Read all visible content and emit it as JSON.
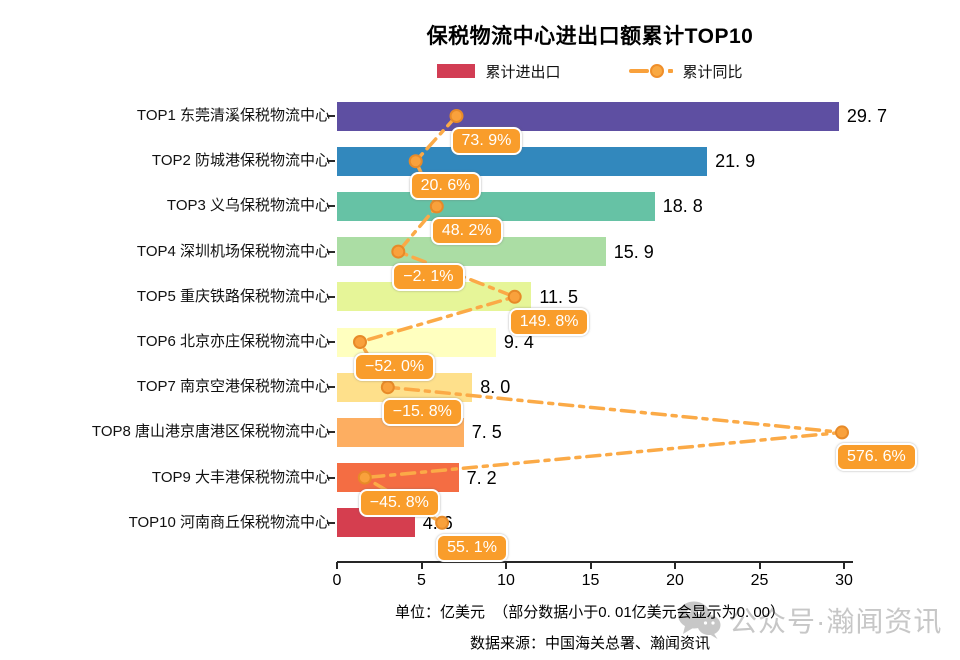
{
  "title": "保税物流中心进出口额累计TOP10",
  "legend": {
    "bar_label": "累计进出口",
    "bar_color": "#d23d54",
    "line_label": "累计同比",
    "line_color": "#f9a13c"
  },
  "chart_data": {
    "type": "bar",
    "orientation": "horizontal",
    "title": "保税物流中心进出口额累计TOP10",
    "categories": [
      "TOP1 东莞清溪保税物流中心",
      "TOP2 防城港保税物流中心",
      "TOP3 义乌保税物流中心",
      "TOP4 深圳机场保税物流中心",
      "TOP5 重庆铁路保税物流中心",
      "TOP6 北京亦庄保税物流中心",
      "TOP7 南京空港保税物流中心",
      "TOP8 唐山港京唐港区保税物流中心",
      "TOP9 大丰港保税物流中心",
      "TOP10 河南商丘保税物流中心"
    ],
    "series": [
      {
        "name": "累计进出口",
        "type": "bar",
        "unit": "亿美元",
        "values": [
          29.7,
          21.9,
          18.8,
          15.9,
          11.5,
          9.4,
          8.0,
          7.5,
          7.2,
          4.6
        ]
      },
      {
        "name": "累计同比",
        "type": "line",
        "unit": "%",
        "values": [
          73.9,
          20.6,
          48.2,
          -2.1,
          149.8,
          -52.0,
          -15.8,
          576.6,
          -45.8,
          55.1
        ]
      }
    ],
    "value_labels": [
      "29. 7",
      "21. 9",
      "18. 8",
      "15. 9",
      "11. 5",
      "9. 4",
      "8. 0",
      "7. 5",
      "7. 2",
      "4. 6"
    ],
    "pct_labels": [
      "73. 9%",
      "20. 6%",
      "48. 2%",
      "−2. 1%",
      "149. 8%",
      "−52. 0%",
      "−15. 8%",
      "576. 6%",
      "−45. 8%",
      "55. 1%"
    ],
    "bar_colors": [
      "#5e4fa2",
      "#3288bd",
      "#66c2a5",
      "#abdda4",
      "#e6f598",
      "#ffffbf",
      "#fee08b",
      "#fdae61",
      "#f46d43",
      "#d53e4f"
    ],
    "line_color": "#fbaa47",
    "marker_fill": "#f9a13c",
    "marker_stroke": "#e78a28",
    "badge_color": "#f99d2b",
    "x_ticks": [
      "0",
      "5",
      "10",
      "15",
      "20",
      "25",
      "30"
    ],
    "xlim": [
      0,
      30.6
    ],
    "grid": false,
    "legend_position": "top"
  },
  "footer": {
    "unit_note": "单位：亿美元  （部分数据小于0. 01亿美元会显示为0. 00）",
    "source": "数据来源：中国海关总署、瀚闻资讯"
  },
  "watermark": {
    "icon": "wechat-icon",
    "text": "公众号·瀚闻资讯"
  }
}
